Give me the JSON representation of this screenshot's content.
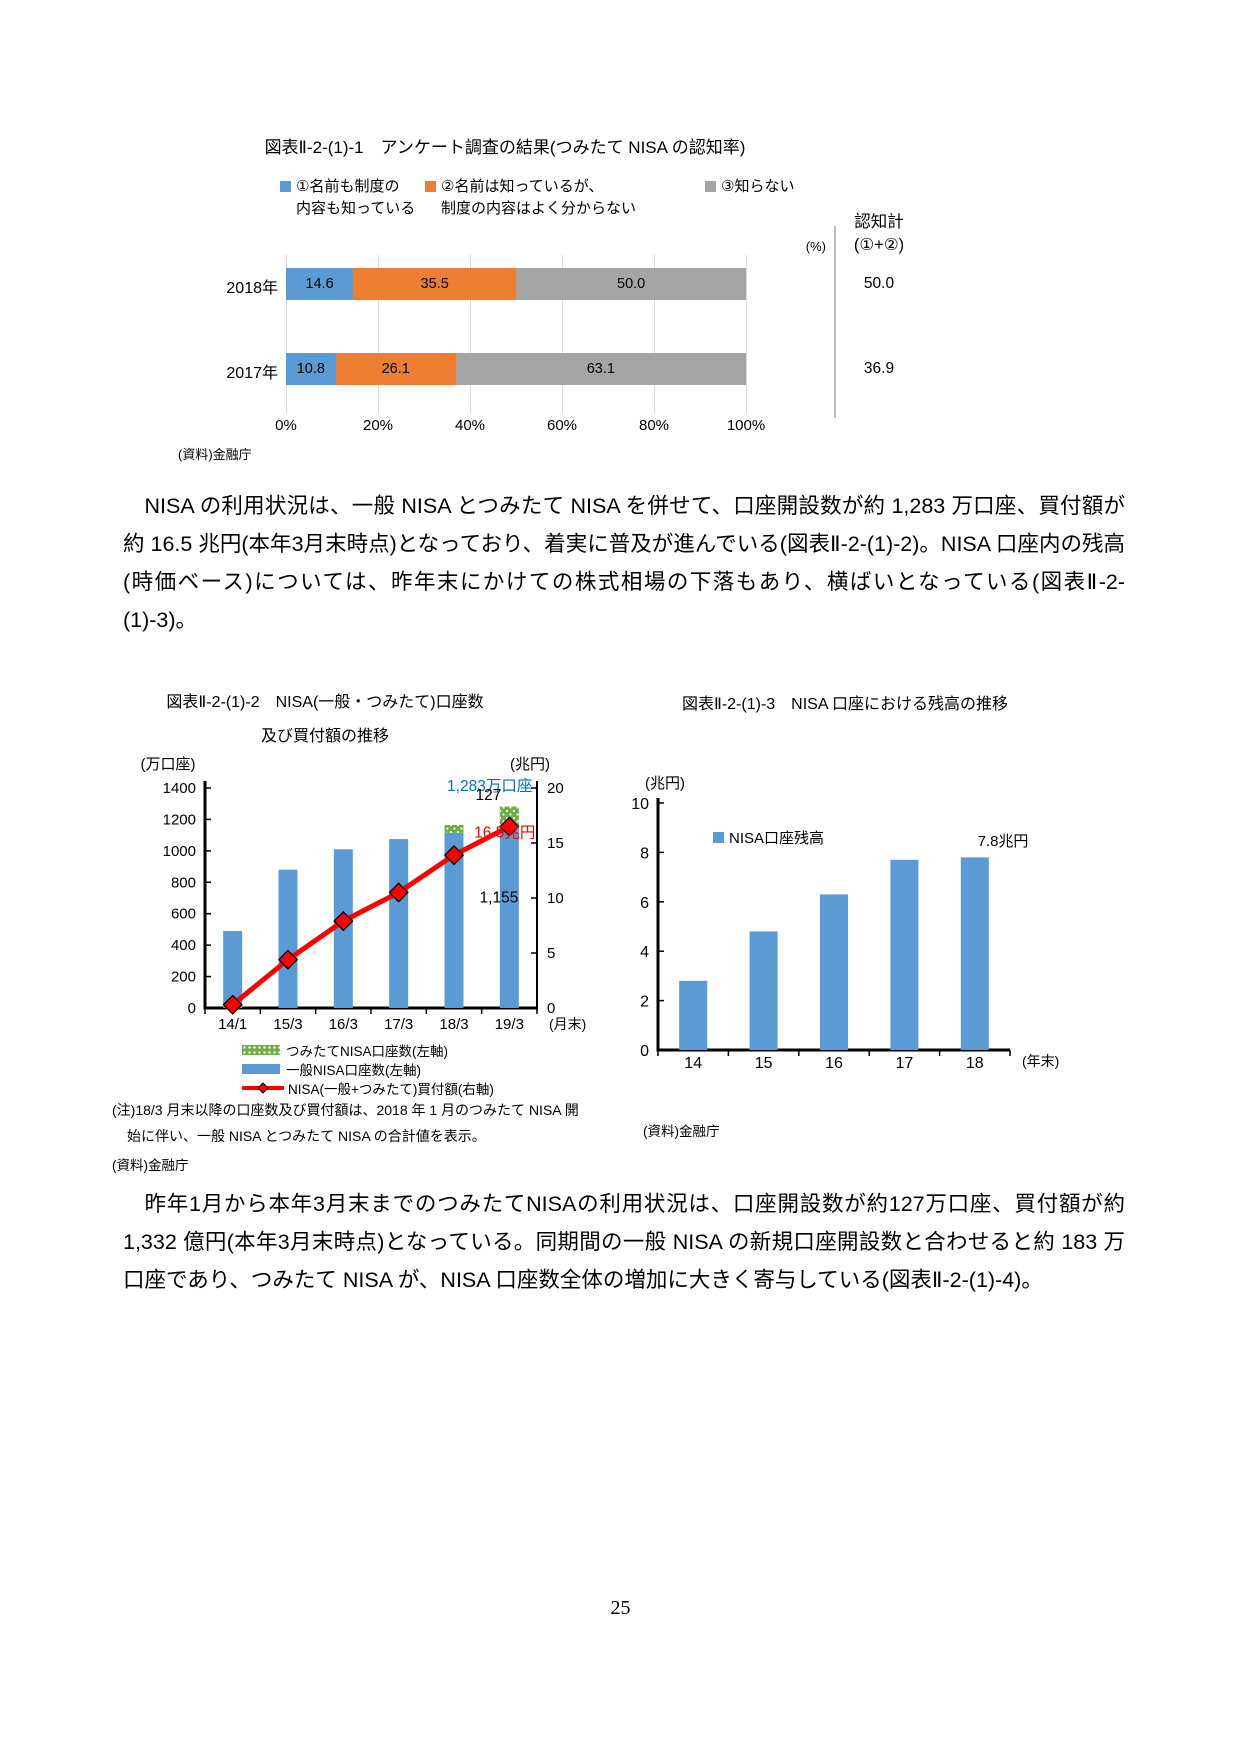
{
  "page_number": "25",
  "paragraphs": [
    "NISA の利用状況は、一般 NISA とつみたて NISA を併せて、口座開設数が約 1,283 万口座、買付額が約 16.5 兆円(本年3月末時点)となっており、着実に普及が進んでいる(図表Ⅱ-2-(1)-2)。NISA 口座内の残高(時価ベース)については、昨年末にかけての株式相場の下落もあり、横ばいとなっている(図表Ⅱ-2-(1)-3)。",
    "昨年1月から本年3月末までのつみたてNISAの利用状況は、口座開設数が約127万口座、買付額が約 1,332 億円(本年3月末時点)となっている。同期間の一般 NISA の新規口座開設数と合わせると約 183 万口座であり、つみたて NISA が、NISA 口座数全体の増加に大きく寄与している(図表Ⅱ-2-(1)-4)。"
  ],
  "chart_data": [
    {
      "id": "tsumitate-nisa-awareness",
      "type": "bar",
      "orientation": "horizontal-stacked",
      "title": "図表Ⅱ-2-(1)-1　アンケート調査の結果(つみたて NISA の認知率)",
      "unit": "(%)",
      "series": [
        {
          "name": "①名前も制度の内容も知っている",
          "legend_lines": [
            "①名前も制度の",
            "内容も知っている"
          ],
          "color": "#5B9BD5"
        },
        {
          "name": "②名前は知っているが、制度の内容はよく分からない",
          "legend_lines": [
            "②名前は知っているが、",
            "制度の内容はよく分からない"
          ],
          "color": "#ED7D31"
        },
        {
          "name": "③知らない",
          "legend_lines": [
            "③知らない"
          ],
          "color": "#A5A5A5"
        }
      ],
      "categories": [
        "2018年",
        "2017年"
      ],
      "rows": [
        {
          "label": "2018年",
          "values": [
            14.6,
            35.5,
            50.0
          ],
          "total": "50.0"
        },
        {
          "label": "2017年",
          "values": [
            10.8,
            26.1,
            63.1
          ],
          "total": "36.9"
        }
      ],
      "totals_header": [
        "認知計",
        "(①+②)"
      ],
      "x_ticks": [
        "0%",
        "20%",
        "40%",
        "60%",
        "80%",
        "100%"
      ],
      "xlim": [
        0,
        100
      ],
      "grid": true,
      "legend_position": "top",
      "source": "(資料)金融庁"
    },
    {
      "id": "nisa-accounts-and-purchases",
      "type": "bar+line",
      "title_lines": [
        "図表Ⅱ-2-(1)-2　NISA(一般・つみたて)口座数",
        "及び買付額の推移"
      ],
      "left_axis": {
        "label": "(万口座)",
        "min": 0,
        "max": 1400,
        "step": 200
      },
      "right_axis": {
        "label": "(兆円)",
        "min": 0,
        "max": 20,
        "step": 5
      },
      "x_labels": [
        "14/1",
        "15/3",
        "16/3",
        "17/3",
        "18/3",
        "19/3"
      ],
      "x_suffix": "(月末)",
      "series": [
        {
          "name": "つみたてNISA口座数(左軸)",
          "type": "bar-stacked-top",
          "values": [
            0,
            0,
            0,
            0,
            50,
            127
          ]
        },
        {
          "name": "一般NISA口座数(左軸)",
          "type": "bar",
          "values": [
            490,
            880,
            1010,
            1075,
            1115,
            1155
          ]
        },
        {
          "name": "NISA(一般+つみたて)買付額(右軸)",
          "type": "line",
          "values": [
            0.3,
            4.4,
            7.9,
            10.5,
            13.9,
            16.5
          ]
        }
      ],
      "colors": {
        "general": "#5B9BD5",
        "tsumitate": "#70AD47",
        "line": "#FF0000"
      },
      "annotations": [
        {
          "text": "1,283万口座",
          "color": "#0070C0",
          "xi": 5,
          "axis": "left",
          "value": 1380,
          "dx": 23,
          "anchor": "end"
        },
        {
          "text": "127",
          "color": "#000000",
          "xi": 5,
          "axis": "left",
          "value": 1323,
          "dx": -8,
          "anchor": "end"
        },
        {
          "text": "16.5兆円",
          "color": "#FF0000",
          "xi": 5,
          "axis": "right",
          "value": 15.5,
          "dx": 26,
          "anchor": "end"
        },
        {
          "text": "1,155",
          "color": "#000000",
          "xi": 5,
          "axis": "left",
          "value": 670,
          "dx": 9,
          "anchor": "end"
        }
      ],
      "legend": [
        {
          "label": "つみたてNISA口座数(左軸)",
          "swatch": "tsumitate"
        },
        {
          "label": "一般NISA口座数(左軸)",
          "swatch": "general"
        },
        {
          "label": "NISA(一般+つみたて)買付額(右軸)",
          "swatch": "line"
        }
      ],
      "note_lines": [
        "(注)18/3 月末以降の口座数及び買付額は、2018 年 1 月のつみたて NISA 開",
        "始に伴い、一般 NISA とつみたて NISA の合計値を表示。"
      ],
      "source": "(資料)金融庁"
    },
    {
      "id": "nisa-balance",
      "type": "bar",
      "title": "図表Ⅱ-2-(1)-3　NISA 口座における残高の推移",
      "y_axis": {
        "label": "(兆円)",
        "min": 0,
        "max": 10,
        "step": 2
      },
      "x_labels": [
        "14",
        "15",
        "16",
        "17",
        "18"
      ],
      "x_suffix": "(年末)",
      "values": [
        2.8,
        4.8,
        6.3,
        7.7,
        7.8
      ],
      "legend": "NISA口座残高",
      "annotation": "7.8兆円",
      "color": "#5B9BD5",
      "source": "(資料)金融庁"
    }
  ]
}
